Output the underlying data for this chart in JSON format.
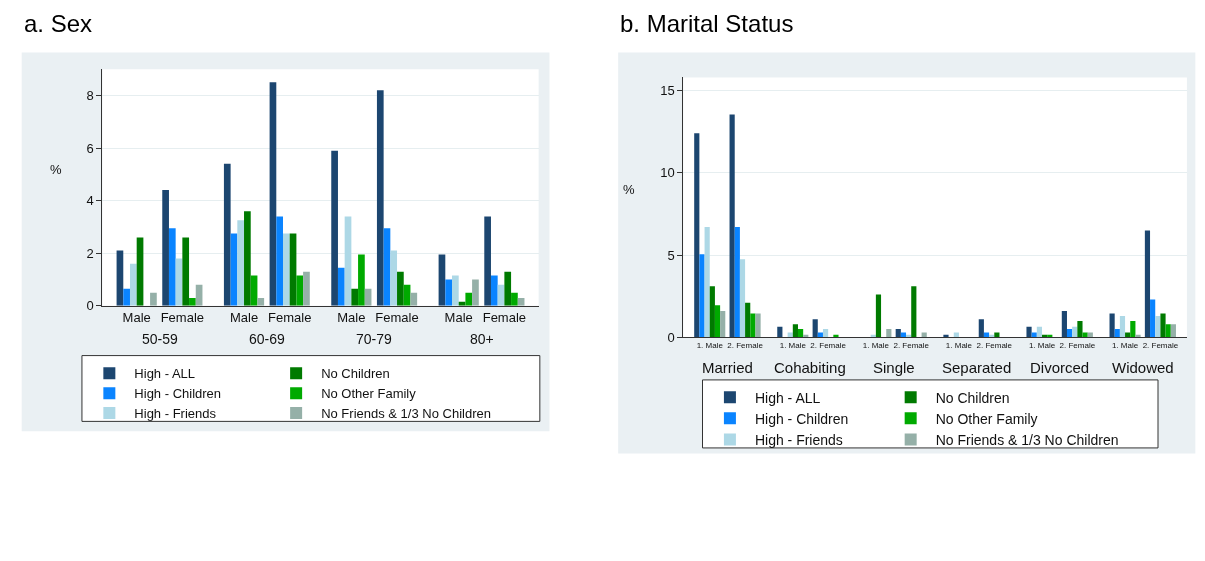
{
  "chart_data": [
    {
      "type": "bar",
      "title": "a. Sex",
      "ylabel": "%",
      "categories": [
        "Male",
        "Female",
        "Male",
        "Female",
        "Male",
        "Female",
        "Male",
        "Female"
      ],
      "annotations": [
        "50-59",
        "60-69",
        "70-79",
        "80+"
      ],
      "series": [
        {
          "name": "High - ALL",
          "color": "#1c4670",
          "values": [
            2.1,
            4.4,
            5.4,
            8.5,
            5.9,
            8.2,
            1.95,
            3.4
          ]
        },
        {
          "name": "High - Children",
          "color": "#0a84ff",
          "values": [
            0.65,
            2.95,
            2.75,
            3.4,
            1.45,
            2.95,
            1.0,
            1.15
          ]
        },
        {
          "name": "High - Friends",
          "color": "#add8e6",
          "values": [
            1.6,
            1.8,
            3.25,
            2.75,
            3.4,
            2.1,
            1.15,
            0.8
          ]
        },
        {
          "name": "No Children",
          "color": "#007a00",
          "values": [
            2.6,
            2.6,
            3.6,
            2.75,
            0.65,
            1.3,
            0.15,
            1.3
          ]
        },
        {
          "name": "No Other Family",
          "color": "#00aa00",
          "values": [
            0,
            0.3,
            1.15,
            1.15,
            1.95,
            0.8,
            0.5,
            0.5
          ]
        },
        {
          "name": "No Friends & 1/3 No Children",
          "color": "#95b0a8",
          "values": [
            0.5,
            0.8,
            0.3,
            1.3,
            0.65,
            0.5,
            1.0,
            0.3
          ]
        }
      ],
      "ylim": [
        0,
        9
      ],
      "yticks": [
        0,
        2,
        4,
        6,
        8
      ],
      "grid": "y",
      "legend": "bottom"
    },
    {
      "type": "bar",
      "title": "b. Marital Status",
      "ylabel": "%",
      "categories": [
        "1. Male",
        "2. Female",
        "1. Male",
        "2. Female",
        "1. Male",
        "2. Female",
        "1. Male",
        "2. Female",
        "1. Male",
        "2. Female",
        "1. Male",
        "2. Female"
      ],
      "annotations": [
        "Married",
        "Cohabiting",
        "Single",
        "Separated",
        "Divorced",
        "Widowed"
      ],
      "series": [
        {
          "name": "High - ALL",
          "color": "#1c4670",
          "values": [
            12.4,
            13.55,
            0.65,
            1.1,
            0,
            0.5,
            0.15,
            1.1,
            0.65,
            1.6,
            1.45,
            6.5
          ]
        },
        {
          "name": "High - Children",
          "color": "#0a84ff",
          "values": [
            5.05,
            6.7,
            0,
            0.3,
            0,
            0.3,
            0,
            0.3,
            0.3,
            0.5,
            0.5,
            2.3
          ]
        },
        {
          "name": "High - Friends",
          "color": "#add8e6",
          "values": [
            6.7,
            4.75,
            0.3,
            0.5,
            0.15,
            0.15,
            0.3,
            0.15,
            0.65,
            0.65,
            1.3,
            1.3
          ]
        },
        {
          "name": "No Children",
          "color": "#007a00",
          "values": [
            3.1,
            2.1,
            0.8,
            0,
            2.6,
            3.1,
            0,
            0.3,
            0.15,
            1.0,
            0.3,
            1.45
          ]
        },
        {
          "name": "No Other Family",
          "color": "#00aa00",
          "values": [
            1.95,
            1.45,
            0.5,
            0.15,
            0,
            0,
            0,
            0,
            0.15,
            0.3,
            1.0,
            0.8
          ]
        },
        {
          "name": "No Friends & 1/3 No Children",
          "color": "#95b0a8",
          "values": [
            1.6,
            1.45,
            0.15,
            0,
            0.5,
            0.3,
            0,
            0,
            0,
            0.3,
            0.15,
            0.8
          ]
        }
      ],
      "ylim": [
        0,
        15.8
      ],
      "yticks": [
        0,
        5,
        10,
        15
      ],
      "grid": "y",
      "legend": "bottom"
    }
  ]
}
